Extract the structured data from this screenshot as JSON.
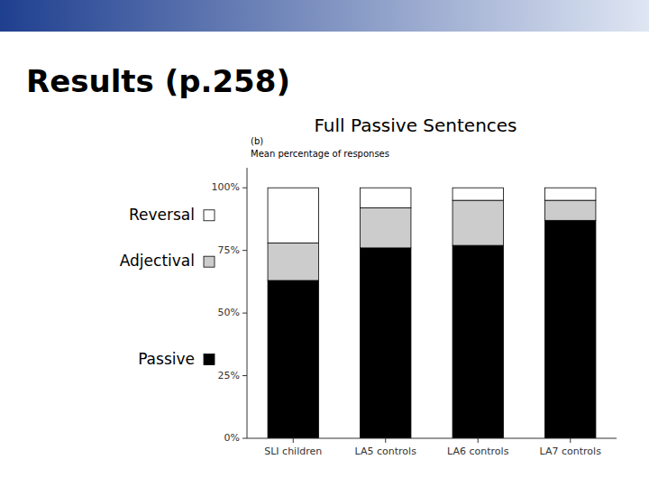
{
  "title": "Results (p.258)",
  "chart_data": {
    "type": "bar",
    "stacked": true,
    "title": "Full Passive Sentences",
    "subtitle": "(b)",
    "y_label": "Mean percentage of responses",
    "categories": [
      "SLI children",
      "LA5 controls",
      "LA6 controls",
      "LA7 controls"
    ],
    "series": [
      {
        "name": "Passive",
        "color": "#000000",
        "values": [
          63,
          76,
          77,
          87
        ]
      },
      {
        "name": "Adjectival",
        "color": "#cccccc",
        "values": [
          15,
          16,
          18,
          8
        ]
      },
      {
        "name": "Reversal",
        "color": "#ffffff",
        "values": [
          22,
          8,
          5,
          5
        ]
      }
    ],
    "ylim": [
      0,
      108
    ],
    "yticks": [
      {
        "value": 0,
        "label": "0%"
      },
      {
        "value": 25,
        "label": "25%"
      },
      {
        "value": 50,
        "label": "50%"
      },
      {
        "value": 75,
        "label": "75%"
      },
      {
        "value": 100,
        "label": "100%"
      }
    ],
    "grid": false,
    "legend": "left"
  }
}
